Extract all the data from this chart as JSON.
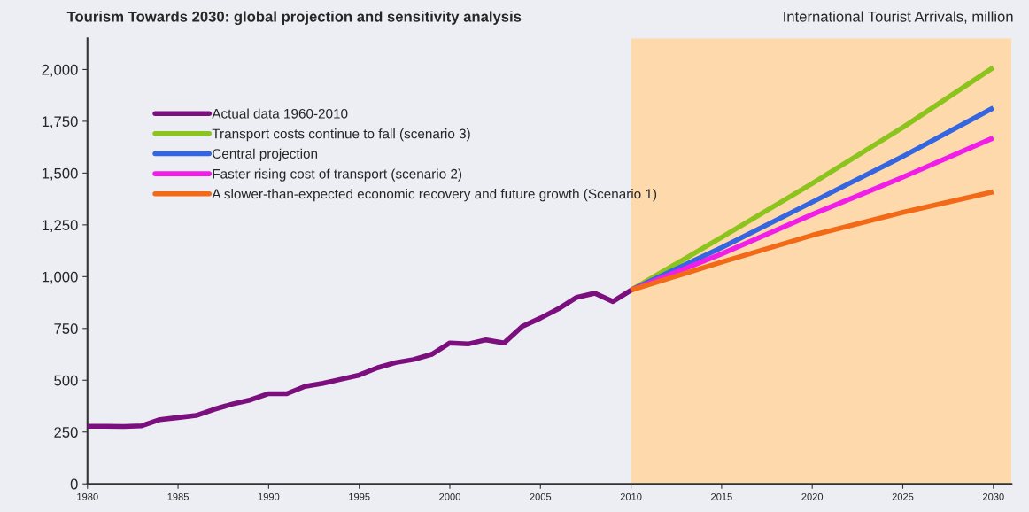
{
  "chart_data": {
    "type": "line",
    "title": "Tourism Towards 2030: global projection and sensitivity analysis",
    "ylabel": "International Tourist Arrivals, million",
    "series": [
      {
        "name": "Actual data 1960-2010",
        "color": "#7b0f7e",
        "x": [
          1980,
          1981,
          1982,
          1983,
          1984,
          1985,
          1986,
          1987,
          1988,
          1989,
          1990,
          1991,
          1992,
          1993,
          1994,
          1995,
          1996,
          1997,
          1998,
          1999,
          2000,
          2001,
          2002,
          2003,
          2004,
          2005,
          2006,
          2007,
          2008,
          2009,
          2010
        ],
        "values": [
          278,
          278,
          277,
          280,
          310,
          320,
          330,
          360,
          385,
          405,
          435,
          435,
          470,
          485,
          505,
          525,
          560,
          585,
          600,
          625,
          680,
          675,
          695,
          680,
          760,
          800,
          845,
          900,
          920,
          880,
          935
        ]
      },
      {
        "name": "Transport costs continue to fall (scenario 3)",
        "color": "#8cc41e",
        "x": [
          2010,
          2015,
          2020,
          2025,
          2030
        ],
        "values": [
          935,
          1190,
          1450,
          1720,
          2010
        ]
      },
      {
        "name": "Central projection",
        "color": "#3366e0",
        "x": [
          2010,
          2015,
          2020,
          2025,
          2030
        ],
        "values": [
          935,
          1140,
          1360,
          1580,
          1815
        ]
      },
      {
        "name": "Faster rising cost of transport (scenario 2)",
        "color": "#f01ee8",
        "x": [
          2010,
          2015,
          2020,
          2025,
          2030
        ],
        "values": [
          935,
          1110,
          1300,
          1480,
          1670
        ]
      },
      {
        "name": "A slower-than-expected economic recovery and future growth (Scenario 1)",
        "color": "#f26a18",
        "x": [
          2010,
          2015,
          2020,
          2025,
          2030
        ],
        "values": [
          935,
          1070,
          1200,
          1310,
          1410
        ]
      }
    ],
    "xlim": [
      1980,
      2031
    ],
    "xticks": [
      1980,
      1985,
      1990,
      1995,
      2000,
      2005,
      2010,
      2015,
      2020,
      2025,
      2030
    ],
    "ylim": [
      0,
      2150
    ],
    "yticks": [
      0,
      250,
      500,
      750,
      {
        "value": 1000,
        "label": "1,000"
      },
      {
        "value": 1250,
        "label": "1,250"
      },
      {
        "value": 1500,
        "label": "1,500"
      },
      {
        "value": 1750,
        "label": "1,750"
      },
      {
        "value": 2000,
        "label": "2,000"
      }
    ],
    "bands": [
      {
        "axis": "x",
        "from": 2010,
        "to": 2031,
        "color": "#fdd9ab"
      }
    ],
    "grid": false,
    "legend": "top left",
    "marker": "none",
    "line_style": "solid"
  }
}
